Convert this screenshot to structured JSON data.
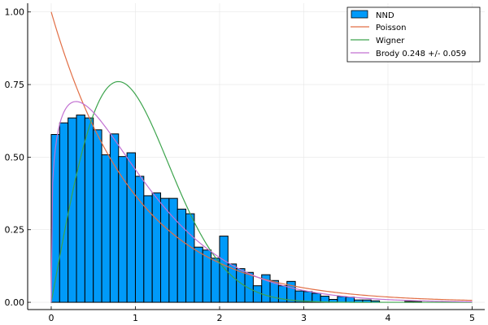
{
  "chart_data": {
    "type": "histogram",
    "xlim": [
      -0.28,
      5.15
    ],
    "ylim": [
      -0.025,
      1.03
    ],
    "xticks": [
      0,
      1,
      2,
      3,
      4,
      5
    ],
    "yticks": [
      0.0,
      0.25,
      0.5,
      0.75,
      1.0
    ],
    "xtick_labels": [
      "0",
      "1",
      "2",
      "3",
      "4",
      "5"
    ],
    "ytick_labels": [
      "0.00",
      "0.25",
      "0.50",
      "0.75",
      "1.00"
    ],
    "grid": true,
    "legend_position": "top-right",
    "histogram": {
      "name": "NND",
      "color": "#009af9",
      "bin_width": 0.1,
      "bins": [
        [
          0.0,
          0.578
        ],
        [
          0.1,
          0.618
        ],
        [
          0.2,
          0.635
        ],
        [
          0.3,
          0.645
        ],
        [
          0.4,
          0.635
        ],
        [
          0.5,
          0.594
        ],
        [
          0.6,
          0.508
        ],
        [
          0.7,
          0.58
        ],
        [
          0.8,
          0.502
        ],
        [
          0.9,
          0.515
        ],
        [
          1.0,
          0.434
        ],
        [
          1.1,
          0.367
        ],
        [
          1.2,
          0.377
        ],
        [
          1.3,
          0.358
        ],
        [
          1.4,
          0.358
        ],
        [
          1.5,
          0.321
        ],
        [
          1.6,
          0.305
        ],
        [
          1.7,
          0.19
        ],
        [
          1.8,
          0.18
        ],
        [
          1.9,
          0.152
        ],
        [
          2.0,
          0.228
        ],
        [
          2.1,
          0.132
        ],
        [
          2.2,
          0.116
        ],
        [
          2.3,
          0.103
        ],
        [
          2.4,
          0.057
        ],
        [
          2.5,
          0.095
        ],
        [
          2.6,
          0.075
        ],
        [
          2.7,
          0.057
        ],
        [
          2.8,
          0.072
        ],
        [
          2.9,
          0.039
        ],
        [
          3.0,
          0.037
        ],
        [
          3.1,
          0.031
        ],
        [
          3.2,
          0.021
        ],
        [
          3.3,
          0.01
        ],
        [
          3.4,
          0.02
        ],
        [
          3.5,
          0.018
        ],
        [
          3.6,
          0.008
        ],
        [
          3.7,
          0.008
        ],
        [
          3.8,
          0.005
        ],
        [
          3.9,
          0.0
        ],
        [
          4.0,
          0.0
        ],
        [
          4.1,
          0.0
        ],
        [
          4.2,
          0.003
        ],
        [
          4.3,
          0.003
        ]
      ]
    },
    "series": [
      {
        "name": "Poisson",
        "color": "#e26f46"
      },
      {
        "name": "Wigner",
        "color": "#3da44d"
      },
      {
        "name": "Brody 0.248 +/- 0.059",
        "color": "#c271d2",
        "beta": 0.248
      }
    ],
    "curve_x_range": [
      0,
      5
    ]
  }
}
